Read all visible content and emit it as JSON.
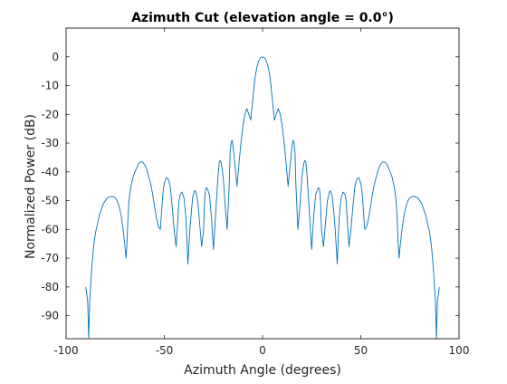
{
  "chart_data": {
    "type": "line",
    "title": "Azimuth Cut (elevation angle = 0.0°)",
    "xlabel": "Azimuth Angle (degrees)",
    "ylabel": "Normalized Power (dB)",
    "xlim": [
      -100,
      100
    ],
    "ylim": [
      -98,
      10
    ],
    "x_ticks": [
      -100,
      -50,
      0,
      50,
      100
    ],
    "y_ticks": [
      0,
      -10,
      -20,
      -30,
      -40,
      -50,
      -60,
      -70,
      -80,
      -90
    ],
    "grid": true,
    "series_color": "#0072BD",
    "series": [
      {
        "x": [
          -90,
          -89,
          -88.5,
          -88,
          -87,
          -86,
          -85,
          -84,
          -83,
          -82,
          -81,
          -80,
          -79,
          -78,
          -77,
          -76,
          -75,
          -74,
          -73,
          -72,
          -71,
          -70,
          -69.5,
          -69,
          -68.5,
          -68,
          -67,
          -66,
          -65,
          -64,
          -63,
          -62,
          -61,
          -60,
          -59,
          -58,
          -57,
          -56,
          -55,
          -54,
          -53,
          -52,
          -51.5,
          -51,
          -50.5,
          -50,
          -49,
          -48,
          -47,
          -46,
          -45,
          -44,
          -43.5,
          -43,
          -42.5,
          -42,
          -41,
          -40,
          -39,
          -38,
          -37,
          -36,
          -35.5,
          -35,
          -34.5,
          -34,
          -33,
          -32,
          -31,
          -30,
          -29.5,
          -29,
          -28.5,
          -28,
          -27,
          -26,
          -25,
          -24,
          -23,
          -22.5,
          -22,
          -21.5,
          -21,
          -20,
          -19,
          -18,
          -17,
          -16.5,
          -16,
          -15.5,
          -15,
          -14,
          -13,
          -12,
          -11,
          -10,
          -9,
          -8,
          -7,
          -6,
          -5,
          -4,
          -3,
          -2,
          -1,
          0,
          1,
          2,
          3,
          4,
          5,
          6,
          7,
          8,
          9,
          10,
          11,
          12,
          13,
          14,
          15,
          15.5,
          16,
          16.5,
          17,
          18,
          19,
          20,
          21,
          21.5,
          22,
          22.5,
          23,
          24,
          25,
          26,
          27,
          28,
          28.5,
          29,
          29.5,
          30,
          31,
          32,
          33,
          34,
          34.5,
          35,
          35.5,
          36,
          37,
          38,
          39,
          40,
          41,
          42,
          42.5,
          43,
          43.5,
          44,
          45,
          46,
          47,
          48,
          49,
          50,
          50.5,
          51,
          51.5,
          52,
          53,
          54,
          55,
          56,
          57,
          58,
          59,
          60,
          61,
          62,
          63,
          64,
          65,
          66,
          67,
          68,
          68.5,
          69,
          69.5,
          70,
          71,
          72,
          73,
          74,
          75,
          76,
          77,
          78,
          79,
          80,
          81,
          82,
          83,
          84,
          85,
          86,
          87,
          88,
          88.5,
          89,
          90
        ],
        "y": [
          -80,
          -85,
          -98,
          -85,
          -74,
          -66,
          -61,
          -58,
          -55,
          -53,
          -51,
          -50,
          -49,
          -48.7,
          -48.5,
          -48.6,
          -49,
          -50,
          -52,
          -55,
          -60,
          -66,
          -70,
          -65,
          -56,
          -50,
          -45,
          -42,
          -40,
          -38.5,
          -37,
          -36.5,
          -36.6,
          -37.5,
          -39,
          -41.5,
          -44,
          -47.5,
          -52,
          -56,
          -59,
          -60,
          -55,
          -50,
          -46,
          -44,
          -42,
          -42.5,
          -45,
          -52,
          -60,
          -66,
          -61,
          -55,
          -50,
          -48,
          -47,
          -49,
          -56,
          -72,
          -60,
          -52,
          -48.5,
          -47.5,
          -46.5,
          -47,
          -50,
          -58,
          -66,
          -60,
          -50,
          -46,
          -45.5,
          -46,
          -48,
          -56,
          -67,
          -56,
          -45,
          -40,
          -36.5,
          -36,
          -37,
          -42,
          -52,
          -60,
          -45,
          -33,
          -30,
          -29,
          -31,
          -38,
          -45,
          -37,
          -30,
          -24,
          -20,
          -18,
          -20,
          -22,
          -15,
          -8,
          -4,
          -1.5,
          -0.3,
          0,
          -0.3,
          -1.5,
          -4,
          -8,
          -15,
          -22,
          -20,
          -18,
          -20,
          -24,
          -30,
          -37,
          -45,
          -38,
          -31,
          -29,
          -30,
          -33,
          -45,
          -60,
          -52,
          -42,
          -37,
          -36,
          -36.5,
          -40,
          -45,
          -56,
          -67,
          -56,
          -48,
          -46,
          -45.5,
          -46,
          -50,
          -60,
          -66,
          -58,
          -50,
          -47,
          -46.5,
          -47.5,
          -48.5,
          -52,
          -60,
          -72,
          -56,
          -49,
          -47,
          -48,
          -50,
          -55,
          -61,
          -66,
          -60,
          -52,
          -45,
          -42.5,
          -42,
          -44,
          -46,
          -50,
          -55,
          -60,
          -59,
          -56,
          -52,
          -47.5,
          -44,
          -41.5,
          -39,
          -37.5,
          -36.6,
          -36.5,
          -37,
          -38.5,
          -40,
          -42,
          -45,
          -50,
          -56,
          -65,
          -70,
          -66,
          -60,
          -55,
          -52,
          -50,
          -49,
          -48.6,
          -48.5,
          -48.7,
          -49,
          -50,
          -51,
          -53,
          -55,
          -58,
          -61,
          -66,
          -74,
          -85,
          -98,
          -85,
          -80
        ]
      }
    ]
  }
}
